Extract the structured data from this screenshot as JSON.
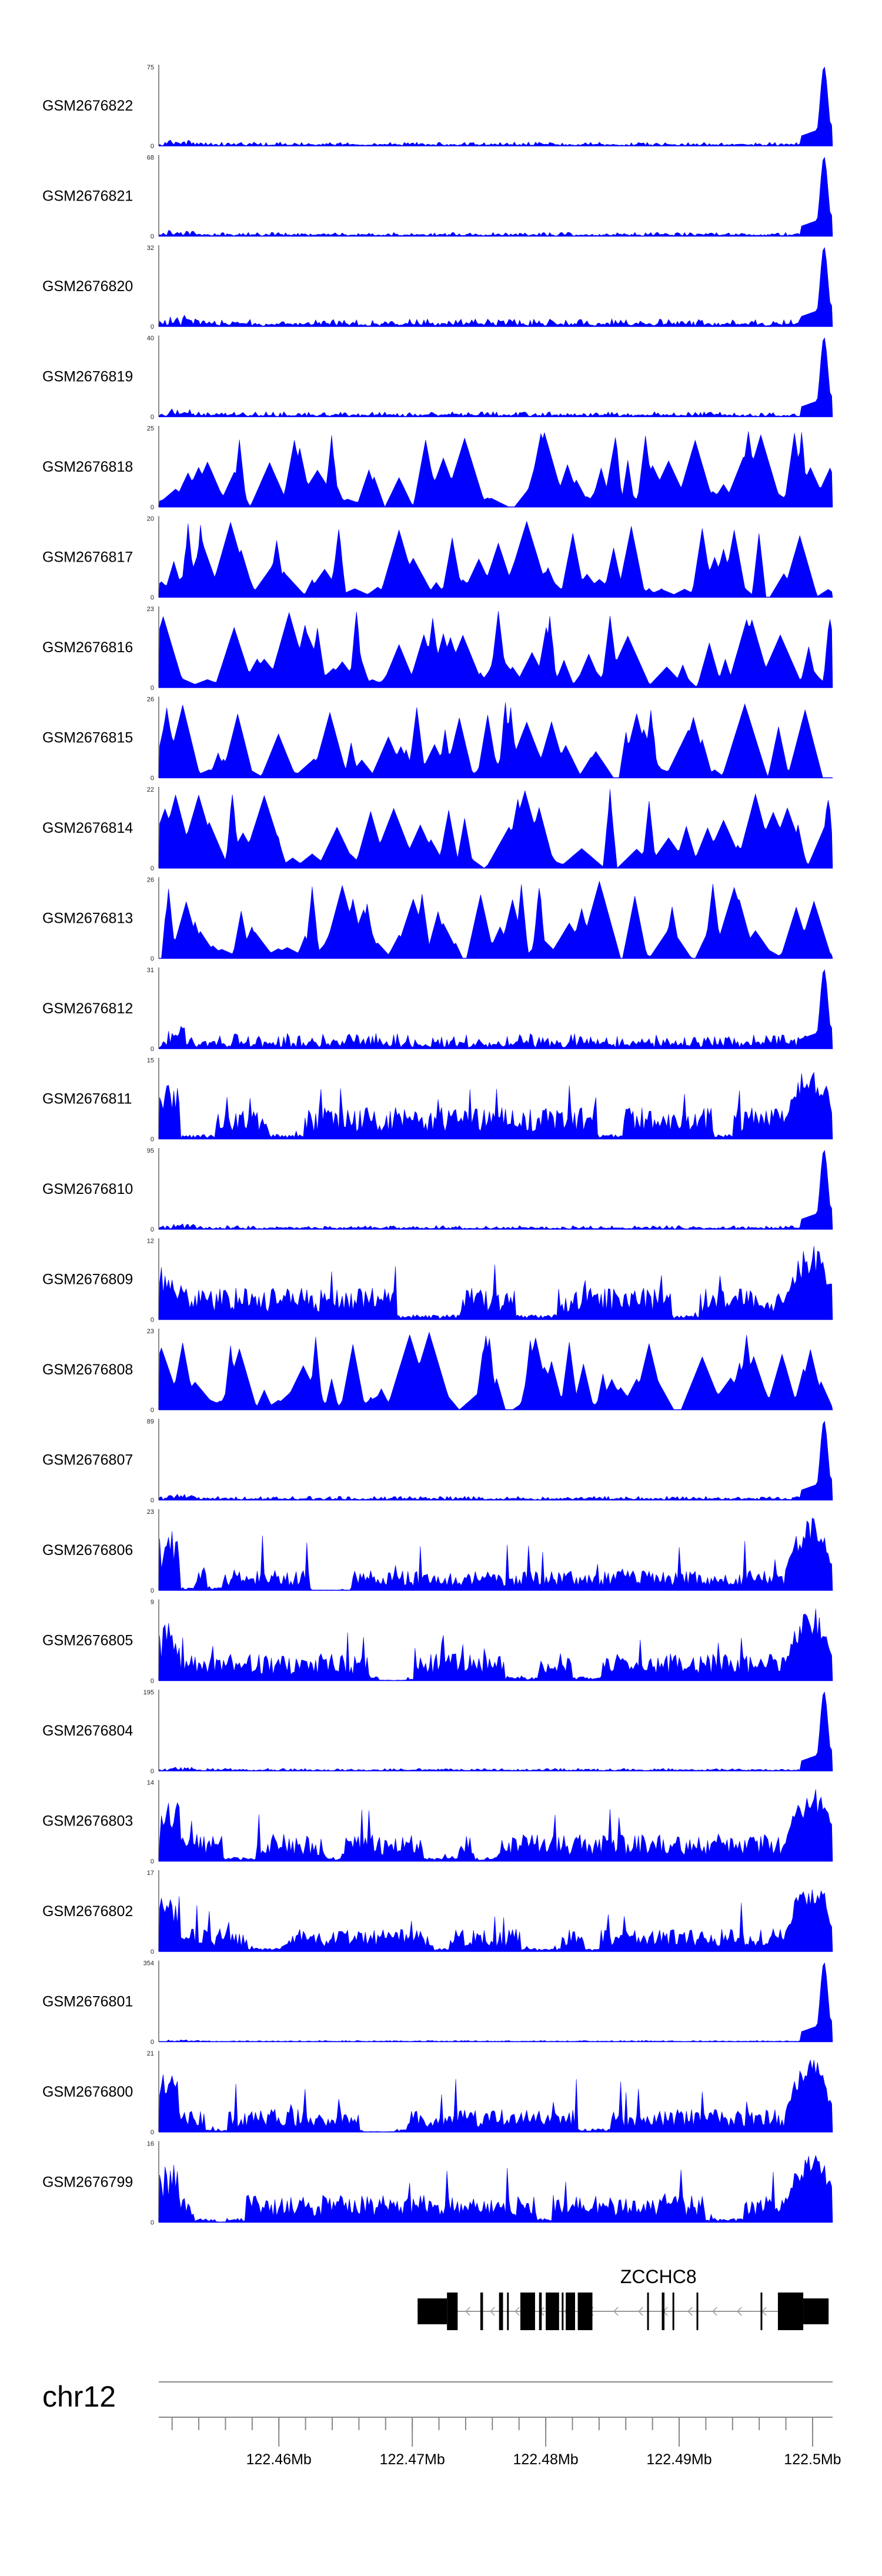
{
  "chart_data": {
    "type": "area",
    "title": "",
    "xlabel": "",
    "ylabel": "",
    "chromosome": "chr12",
    "region_mb": [
      122.451,
      122.5015
    ],
    "x_ticks": [
      {
        "pos": 122.46,
        "label": "122.46Mb"
      },
      {
        "pos": 122.47,
        "label": "122.47Mb"
      },
      {
        "pos": 122.48,
        "label": "122.48Mb"
      },
      {
        "pos": 122.49,
        "label": "122.49Mb"
      },
      {
        "pos": 122.5,
        "label": "122.5Mb"
      }
    ],
    "gene": {
      "name": "ZCCHC8",
      "strand": "-",
      "start_mb": 122.4704,
      "end_mb": 122.5012,
      "exons_mb": [
        [
          122.4704,
          122.4726,
          "utr"
        ],
        [
          122.4726,
          122.4734,
          "cds"
        ],
        [
          122.4751,
          122.4753,
          "cds"
        ],
        [
          122.4765,
          122.4768,
          "cds"
        ],
        [
          122.4771,
          122.4772,
          "cds"
        ],
        [
          122.4781,
          122.4792,
          "cds"
        ],
        [
          122.4795,
          122.4797,
          "cds"
        ],
        [
          122.48,
          122.481,
          "cds"
        ],
        [
          122.4812,
          122.4813,
          "cds"
        ],
        [
          122.4815,
          122.4822,
          "cds"
        ],
        [
          122.4824,
          122.4835,
          "cds"
        ],
        [
          122.4876,
          122.4877,
          "cds"
        ],
        [
          122.4887,
          122.4889,
          "cds"
        ],
        [
          122.4895,
          122.4896,
          "cds"
        ],
        [
          122.4913,
          122.4914,
          "cds"
        ],
        [
          122.4961,
          122.4962,
          "cds"
        ],
        [
          122.4974,
          122.4993,
          "cds"
        ],
        [
          122.4993,
          122.5012,
          "utr"
        ]
      ]
    },
    "series": [
      {
        "name": "GSM2676822",
        "ymax": 75,
        "ymin_label": "0",
        "profile": "tss",
        "background": 0.03,
        "seed": 822
      },
      {
        "name": "GSM2676821",
        "ymax": 68,
        "ymin_label": "0",
        "profile": "tss",
        "background": 0.03,
        "seed": 821
      },
      {
        "name": "GSM2676820",
        "ymax": 32,
        "ymin_label": "0",
        "profile": "tss",
        "background": 0.06,
        "seed": 820
      },
      {
        "name": "GSM2676819",
        "ymax": 40,
        "ymin_label": "0",
        "profile": "tss",
        "background": 0.04,
        "seed": 819
      },
      {
        "name": "GSM2676818",
        "ymax": 25,
        "ymin_label": "0",
        "profile": "spiky",
        "background": 0.0,
        "seed": 818
      },
      {
        "name": "GSM2676817",
        "ymax": 20,
        "ymin_label": "0",
        "profile": "spiky",
        "background": 0.0,
        "seed": 817
      },
      {
        "name": "GSM2676816",
        "ymax": 23,
        "ymin_label": "0",
        "profile": "spiky",
        "background": 0.0,
        "seed": 816
      },
      {
        "name": "GSM2676815",
        "ymax": 26,
        "ymin_label": "0",
        "profile": "spiky",
        "background": 0.0,
        "seed": 815
      },
      {
        "name": "GSM2676814",
        "ymax": 22,
        "ymin_label": "0",
        "profile": "spiky",
        "background": 0.0,
        "seed": 814
      },
      {
        "name": "GSM2676813",
        "ymax": 26,
        "ymin_label": "0",
        "profile": "spiky",
        "background": 0.0,
        "seed": 813
      },
      {
        "name": "GSM2676812",
        "ymax": 31,
        "ymin_label": "0",
        "profile": "tss",
        "background": 0.12,
        "seed": 812
      },
      {
        "name": "GSM2676811",
        "ymax": 15,
        "ymin_label": "0",
        "profile": "dense",
        "background": 0.35,
        "seed": 811
      },
      {
        "name": "GSM2676810",
        "ymax": 95,
        "ymin_label": "0",
        "profile": "tss",
        "background": 0.03,
        "seed": 810
      },
      {
        "name": "GSM2676809",
        "ymax": 12,
        "ymin_label": "0",
        "profile": "dense",
        "background": 0.35,
        "seed": 809
      },
      {
        "name": "GSM2676808",
        "ymax": 23,
        "ymin_label": "0",
        "profile": "spiky",
        "background": 0.0,
        "seed": 808
      },
      {
        "name": "GSM2676807",
        "ymax": 89,
        "ymin_label": "0",
        "profile": "tss",
        "background": 0.03,
        "seed": 807
      },
      {
        "name": "GSM2676806",
        "ymax": 23,
        "ymin_label": "0",
        "profile": "dense",
        "background": 0.22,
        "seed": 806
      },
      {
        "name": "GSM2676805",
        "ymax": 9,
        "ymin_label": "0",
        "profile": "dense",
        "background": 0.3,
        "seed": 805
      },
      {
        "name": "GSM2676804",
        "ymax": 195,
        "ymin_label": "0",
        "profile": "tss",
        "background": 0.02,
        "seed": 804
      },
      {
        "name": "GSM2676803",
        "ymax": 14,
        "ymin_label": "0",
        "profile": "dense",
        "background": 0.3,
        "seed": 803
      },
      {
        "name": "GSM2676802",
        "ymax": 17,
        "ymin_label": "0",
        "profile": "dense",
        "background": 0.25,
        "seed": 802
      },
      {
        "name": "GSM2676801",
        "ymax": 354,
        "ymin_label": "0",
        "profile": "tss",
        "background": 0.01,
        "seed": 801
      },
      {
        "name": "GSM2676800",
        "ymax": 21,
        "ymin_label": "0",
        "profile": "dense",
        "background": 0.25,
        "seed": 800
      },
      {
        "name": "GSM2676799",
        "ymax": 16,
        "ymin_label": "0",
        "profile": "dense",
        "background": 0.3,
        "seed": 799
      }
    ],
    "colors": {
      "signal": "#0000ff",
      "gene": "#000000",
      "axis": "#888888"
    }
  }
}
